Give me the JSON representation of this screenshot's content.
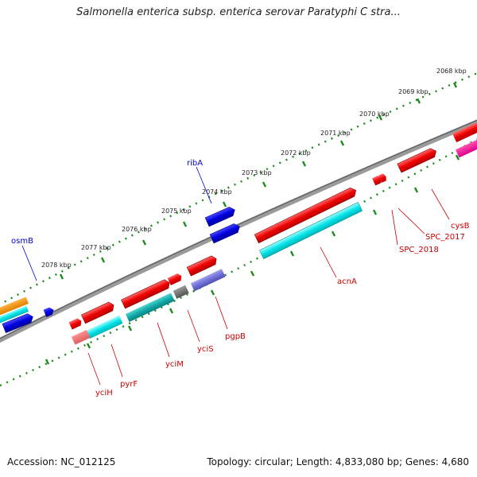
{
  "title": "Salmonella enterica subsp. enterica serovar Paratyphi C stra...",
  "footer": {
    "accession": "Accession: NC_012125",
    "topology": "Topology: circular; Length: 4,833,080 bp; Genes: 4,680"
  },
  "scale_labels": [
    "2068 kbp",
    "2069 kbp",
    "2070 kbp",
    "2071 kbp",
    "2072 kbp",
    "2073 kbp",
    "2074 kbp",
    "2075 kbp",
    "2076 kbp",
    "2077 kbp",
    "2078 kbp"
  ],
  "gene_labels": {
    "top": [
      "osmB",
      "ribA"
    ],
    "bottom": [
      "cysB",
      "SPC_2017",
      "SPC_2018",
      "acnA",
      "pgpB",
      "yciS",
      "yciM",
      "pyrF",
      "yciH"
    ]
  },
  "colors": {
    "plus_strand_gene": "#ee0000",
    "minus_strand_gene": "#ee0000",
    "cds_plus": "#0000dd",
    "cds_minus": "#00dddd",
    "backbone": "#888888",
    "ticks": "#1a8a1a",
    "top_label": "#0000cc",
    "bottom_label": "#cc0000"
  }
}
